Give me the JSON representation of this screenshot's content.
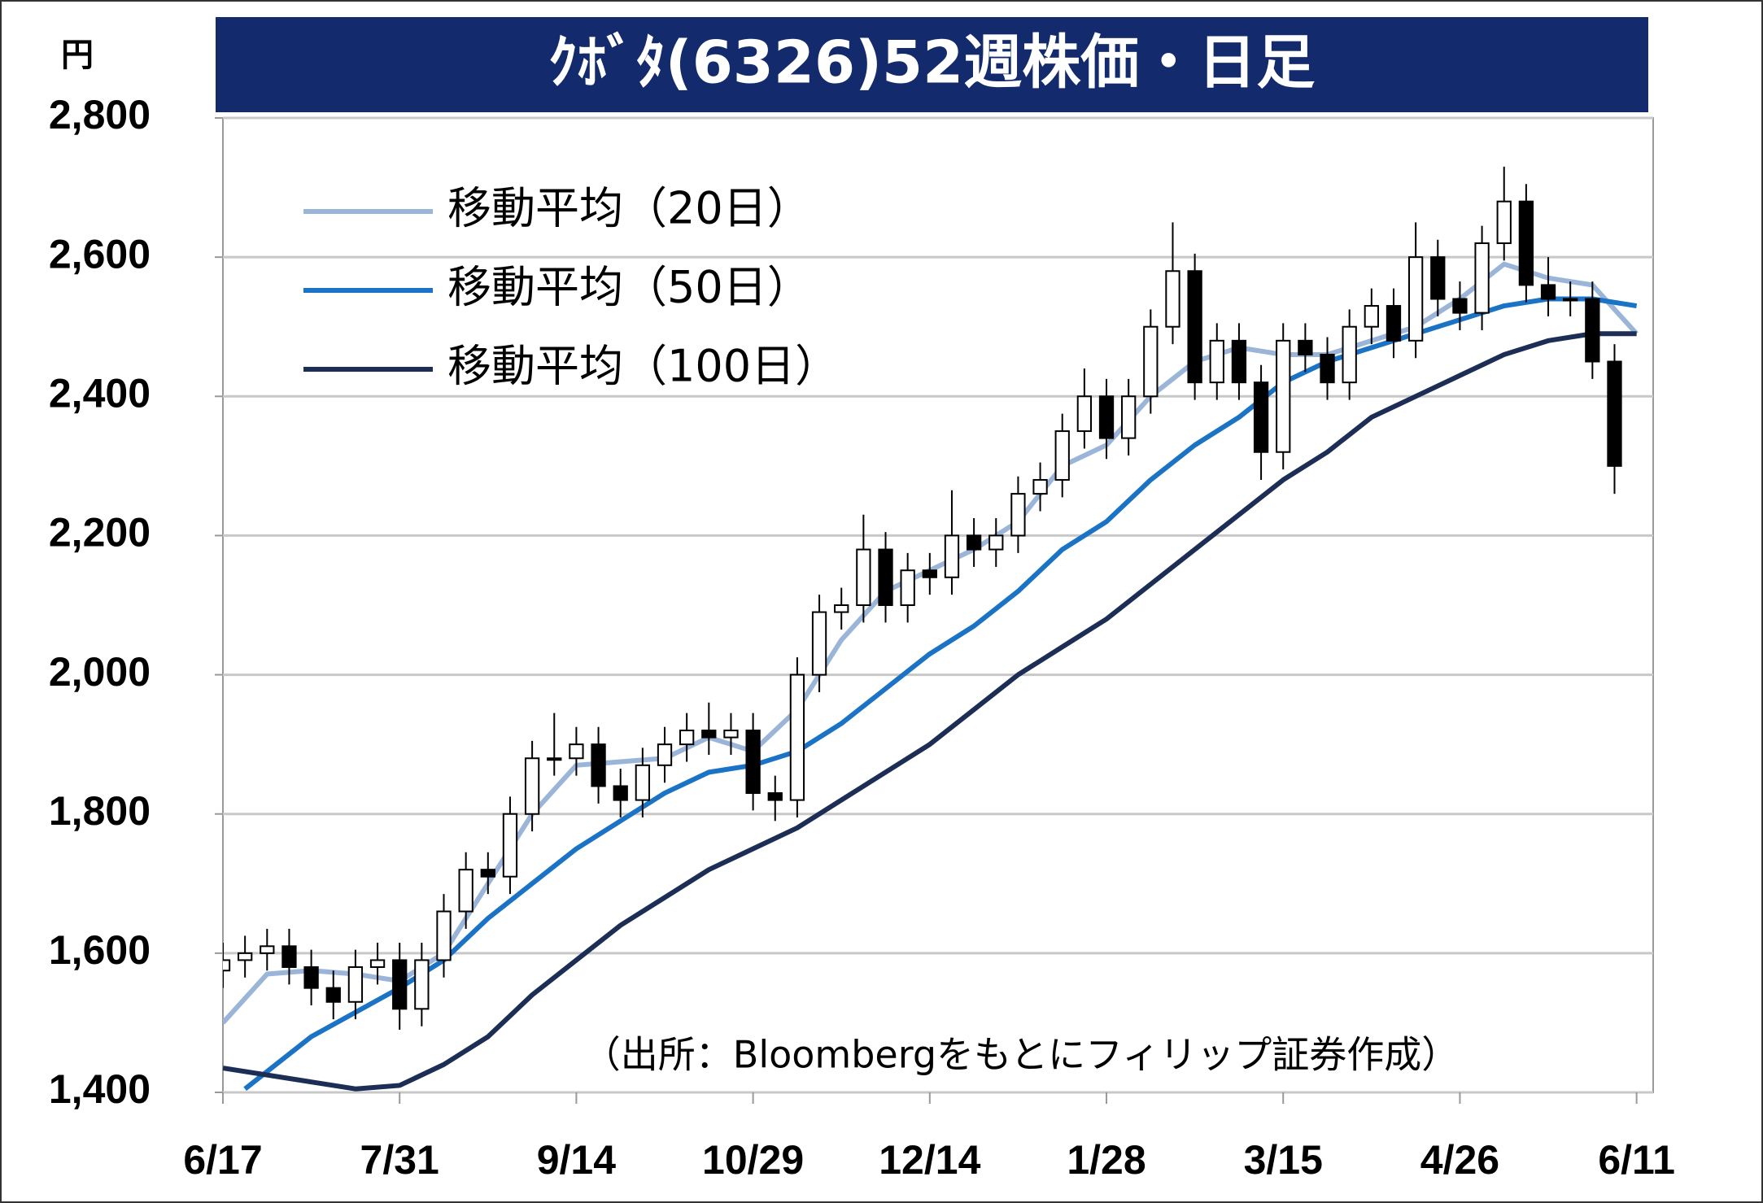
{
  "chart_data": {
    "type": "candlestick",
    "title": "ｸﾎﾞﾀ(6326)52週株価・日足",
    "y_unit_label": "円",
    "annotation": "（出所：Bloombergをもとにフィリップ証券作成）",
    "xlim": [
      0,
      259
    ],
    "xticks": [
      {
        "value": 0,
        "label": "6/17"
      },
      {
        "value": 32,
        "label": "7/31"
      },
      {
        "value": 64,
        "label": "9/14"
      },
      {
        "value": 96,
        "label": "10/29"
      },
      {
        "value": 128,
        "label": "12/14"
      },
      {
        "value": 160,
        "label": "1/28"
      },
      {
        "value": 192,
        "label": "3/15"
      },
      {
        "value": 224,
        "label": "4/26"
      },
      {
        "value": 256,
        "label": "6/11"
      }
    ],
    "ylim": [
      1400,
      2800
    ],
    "yticks": [
      {
        "value": 1400,
        "label": "1,400"
      },
      {
        "value": 1600,
        "label": "1,600"
      },
      {
        "value": 1800,
        "label": "1,800"
      },
      {
        "value": 2000,
        "label": "2,000"
      },
      {
        "value": 2200,
        "label": "2,200"
      },
      {
        "value": 2400,
        "label": "2,400"
      },
      {
        "value": 2600,
        "label": "2,600"
      },
      {
        "value": 2800,
        "label": "2,800"
      }
    ],
    "grid": true,
    "up_color": "#ffffff",
    "down_color": "#000000",
    "candles": {
      "x": [
        0,
        4,
        8,
        12,
        16,
        20,
        24,
        28,
        32,
        36,
        40,
        44,
        48,
        52,
        56,
        60,
        64,
        68,
        72,
        76,
        80,
        84,
        88,
        92,
        96,
        100,
        104,
        108,
        112,
        116,
        120,
        124,
        128,
        132,
        136,
        140,
        144,
        148,
        152,
        156,
        160,
        164,
        168,
        172,
        176,
        180,
        184,
        188,
        192,
        196,
        200,
        204,
        208,
        212,
        216,
        220,
        224,
        228,
        232,
        236,
        240,
        244,
        248,
        252
      ],
      "open": [
        1575,
        1590,
        1600,
        1610,
        1580,
        1550,
        1530,
        1580,
        1590,
        1520,
        1590,
        1660,
        1720,
        1710,
        1800,
        1880,
        1880,
        1900,
        1840,
        1820,
        1870,
        1900,
        1920,
        1910,
        1920,
        1830,
        1820,
        2000,
        2090,
        2100,
        2180,
        2100,
        2150,
        2140,
        2200,
        2180,
        2200,
        2260,
        2280,
        2350,
        2400,
        2340,
        2400,
        2500,
        2580,
        2420,
        2480,
        2420,
        2320,
        2480,
        2460,
        2420,
        2500,
        2530,
        2480,
        2600,
        2540,
        2520,
        2620,
        2680,
        2560,
        2540,
        2540,
        2450
      ],
      "high": [
        1615,
        1625,
        1635,
        1635,
        1605,
        1575,
        1605,
        1615,
        1615,
        1615,
        1685,
        1745,
        1745,
        1825,
        1905,
        1945,
        1925,
        1925,
        1865,
        1895,
        1925,
        1945,
        1960,
        1945,
        1945,
        1855,
        2025,
        2115,
        2125,
        2230,
        2205,
        2175,
        2175,
        2265,
        2225,
        2225,
        2285,
        2305,
        2375,
        2440,
        2425,
        2425,
        2525,
        2650,
        2605,
        2505,
        2505,
        2445,
        2505,
        2505,
        2485,
        2525,
        2555,
        2555,
        2650,
        2625,
        2565,
        2645,
        2730,
        2705,
        2600,
        2565,
        2565,
        2475
      ],
      "low": [
        1550,
        1565,
        1575,
        1555,
        1525,
        1505,
        1505,
        1555,
        1490,
        1495,
        1565,
        1635,
        1685,
        1685,
        1775,
        1855,
        1855,
        1815,
        1795,
        1795,
        1845,
        1875,
        1885,
        1885,
        1805,
        1790,
        1795,
        1975,
        2065,
        2075,
        2075,
        2075,
        2115,
        2115,
        2155,
        2155,
        2175,
        2235,
        2255,
        2325,
        2310,
        2315,
        2375,
        2475,
        2395,
        2395,
        2395,
        2280,
        2295,
        2435,
        2395,
        2395,
        2475,
        2455,
        2455,
        2515,
        2495,
        2495,
        2595,
        2535,
        2515,
        2515,
        2425,
        2260
      ],
      "close": [
        1590,
        1600,
        1610,
        1580,
        1550,
        1530,
        1580,
        1590,
        1520,
        1590,
        1660,
        1720,
        1710,
        1800,
        1880,
        1880,
        1900,
        1840,
        1820,
        1870,
        1900,
        1920,
        1910,
        1920,
        1830,
        1820,
        2000,
        2090,
        2100,
        2180,
        2100,
        2150,
        2140,
        2200,
        2180,
        2200,
        2260,
        2280,
        2350,
        2400,
        2340,
        2400,
        2500,
        2580,
        2420,
        2480,
        2420,
        2320,
        2480,
        2460,
        2420,
        2500,
        2530,
        2480,
        2600,
        2540,
        2520,
        2620,
        2680,
        2560,
        2540,
        2540,
        2450,
        2300
      ]
    },
    "series": [
      {
        "name": "移動平均（20日）",
        "color": "#9bb5d9",
        "x": [
          0,
          8,
          16,
          24,
          32,
          40,
          48,
          56,
          64,
          72,
          80,
          88,
          96,
          104,
          112,
          120,
          128,
          136,
          144,
          152,
          160,
          168,
          176,
          184,
          192,
          200,
          208,
          216,
          224,
          232,
          240,
          248,
          256
        ],
        "values": [
          1500,
          1570,
          1575,
          1570,
          1560,
          1600,
          1700,
          1800,
          1870,
          1875,
          1880,
          1910,
          1890,
          1950,
          2050,
          2120,
          2150,
          2180,
          2220,
          2300,
          2330,
          2400,
          2450,
          2470,
          2460,
          2460,
          2480,
          2500,
          2540,
          2590,
          2570,
          2560,
          2490
        ]
      },
      {
        "name": "移動平均（50日）",
        "color": "#1a73c4",
        "x": [
          4,
          16,
          32,
          40,
          48,
          56,
          64,
          72,
          80,
          88,
          96,
          104,
          112,
          120,
          128,
          136,
          144,
          152,
          160,
          168,
          176,
          184,
          192,
          200,
          208,
          216,
          224,
          232,
          240,
          248,
          256
        ],
        "values": [
          1405,
          1480,
          1550,
          1590,
          1650,
          1700,
          1750,
          1790,
          1830,
          1860,
          1870,
          1890,
          1930,
          1980,
          2030,
          2070,
          2120,
          2180,
          2220,
          2280,
          2330,
          2370,
          2420,
          2450,
          2470,
          2490,
          2510,
          2530,
          2540,
          2540,
          2530
        ]
      },
      {
        "name": "移動平均（100日）",
        "color": "#1c2e55",
        "x": [
          0,
          16,
          24,
          32,
          40,
          48,
          56,
          64,
          72,
          80,
          88,
          96,
          104,
          112,
          120,
          128,
          136,
          144,
          152,
          160,
          168,
          176,
          184,
          192,
          200,
          208,
          216,
          224,
          232,
          240,
          248,
          256
        ],
        "values": [
          1435,
          1415,
          1405,
          1410,
          1440,
          1480,
          1540,
          1590,
          1640,
          1680,
          1720,
          1750,
          1780,
          1820,
          1860,
          1900,
          1950,
          2000,
          2040,
          2080,
          2130,
          2180,
          2230,
          2280,
          2320,
          2370,
          2400,
          2430,
          2460,
          2480,
          2490,
          2490
        ]
      }
    ]
  }
}
